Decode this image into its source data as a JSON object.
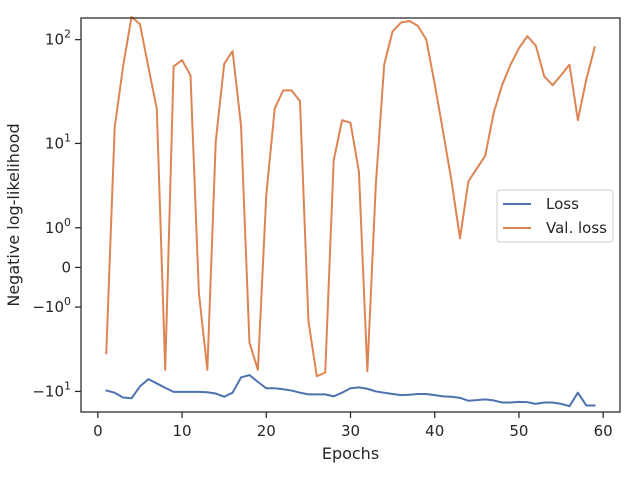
{
  "chart_data": {
    "type": "line",
    "title": "",
    "xlabel": "Epochs",
    "ylabel": "Negative log-likelihood",
    "xlim": [
      -2,
      62
    ],
    "yscale": "symlog",
    "ylim": [
      -16,
      160
    ],
    "grid": false,
    "legend_position": "center-right",
    "x_ticks": [
      0,
      10,
      20,
      30,
      40,
      50,
      60
    ],
    "y_ticks": [
      {
        "value": -10,
        "label": "−10",
        "sup": "1"
      },
      {
        "value": -1,
        "label": "−10",
        "sup": "0"
      },
      {
        "value": 0,
        "label": "0",
        "sup": ""
      },
      {
        "value": 1,
        "label": "10",
        "sup": "0"
      },
      {
        "value": 10,
        "label": "10",
        "sup": "1"
      },
      {
        "value": 100,
        "label": "10",
        "sup": "2"
      }
    ],
    "x": [
      1,
      2,
      3,
      4,
      5,
      6,
      7,
      8,
      9,
      10,
      11,
      12,
      13,
      14,
      15,
      16,
      17,
      18,
      19,
      20,
      21,
      22,
      23,
      24,
      25,
      26,
      27,
      28,
      29,
      30,
      31,
      32,
      33,
      34,
      35,
      36,
      37,
      38,
      39,
      40,
      41,
      42,
      43,
      44,
      45,
      46,
      47,
      48,
      49,
      50,
      51,
      52,
      53,
      54,
      55,
      56,
      57,
      58,
      59
    ],
    "series": [
      {
        "name": "Loss",
        "color": "#4c72b0",
        "values": [
          -9.8,
          -10.3,
          -11.5,
          -11.7,
          -8.9,
          -7.5,
          -8.3,
          -9.2,
          -10.1,
          -10.1,
          -10.1,
          -10.1,
          -10.2,
          -10.5,
          -11.3,
          -10.3,
          -7.2,
          -6.8,
          -8,
          -9.3,
          -9.3,
          -9.5,
          -9.8,
          -10.3,
          -10.7,
          -10.7,
          -10.7,
          -11.2,
          -10.3,
          -9.3,
          -9.1,
          -9.4,
          -10,
          -10.3,
          -10.6,
          -10.9,
          -10.8,
          -10.6,
          -10.6,
          -10.9,
          -11.2,
          -11.3,
          -11.6,
          -12.4,
          -12.2,
          -12,
          -12.3,
          -12.9,
          -12.9,
          -12.7,
          -12.8,
          -13.3,
          -12.9,
          -12.9,
          -13.3,
          -14,
          -10.3,
          -13.8,
          -13.8
        ]
      },
      {
        "name": "Val. loss",
        "color": "#dd8452",
        "values": [
          -4,
          14.5,
          56,
          164,
          140,
          55,
          22,
          -6,
          56,
          64,
          46,
          -0.55,
          -6,
          10.5,
          59,
          78,
          15,
          -3,
          -6,
          2.8,
          22,
          33,
          33,
          26,
          -1.6,
          -7,
          -6.4,
          6.7,
          17,
          16,
          5.1,
          -6.2,
          3.6,
          58,
          120,
          145,
          150,
          135,
          100,
          38,
          13,
          4,
          0.65,
          4,
          5.5,
          7.5,
          20,
          37,
          58,
          83,
          108,
          88,
          45,
          37,
          46,
          58,
          17,
          42,
          85
        ]
      }
    ]
  }
}
